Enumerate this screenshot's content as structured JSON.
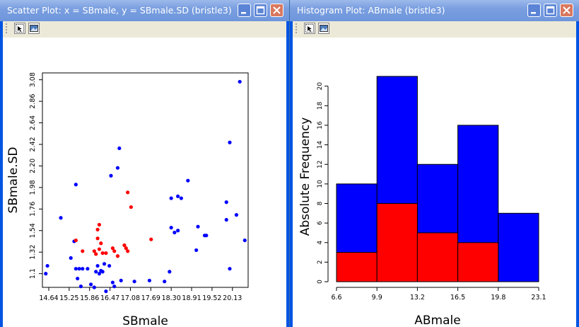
{
  "left_window": {
    "title": "Scatter Plot: x = SBmale, y = SBmale.SD (bristle3)",
    "tools": {
      "select_icon": "select-icon",
      "picture_icon": "picture-icon"
    }
  },
  "right_window": {
    "title": "Histogram Plot: ABmale (bristle3)",
    "tools": {
      "select_icon": "select-icon",
      "picture_icon": "picture-icon"
    }
  },
  "colors": {
    "blue": "#0000ff",
    "red": "#ff0000",
    "titlebar": "#7a9fe0",
    "frame": "#0054e3"
  },
  "chart_data": [
    {
      "type": "scatter",
      "xlabel": "SBmale",
      "ylabel": "SBmale.SD",
      "xticks": [
        "14.64",
        "15.25",
        "15.86",
        "16.47",
        "17.08",
        "17.69",
        "18.30",
        "18.91",
        "19.52",
        "20.13"
      ],
      "yticks": [
        "1.1",
        "1.32",
        "1.54",
        "1.76",
        "1.98",
        "2.20",
        "2.42",
        "2.64",
        "2.86",
        "3.08"
      ],
      "xlim": [
        14.45,
        20.6
      ],
      "ylim": [
        0.96,
        3.15
      ],
      "series": [
        {
          "color": "#0000ff",
          "points": [
            [
              14.55,
              1.1
            ],
            [
              14.6,
              1.18
            ],
            [
              15.0,
              1.67
            ],
            [
              15.3,
              1.26
            ],
            [
              15.4,
              1.43
            ],
            [
              15.45,
              2.01
            ],
            [
              15.45,
              1.15
            ],
            [
              15.5,
              1.05
            ],
            [
              15.55,
              1.15
            ],
            [
              15.6,
              0.97
            ],
            [
              15.65,
              1.15
            ],
            [
              15.8,
              1.15
            ],
            [
              15.9,
              0.99
            ],
            [
              16.0,
              0.96
            ],
            [
              16.05,
              1.12
            ],
            [
              16.1,
              1.18
            ],
            [
              16.15,
              1.1
            ],
            [
              16.2,
              1.13
            ],
            [
              16.25,
              1.12
            ],
            [
              16.3,
              1.2
            ],
            [
              16.35,
              0.92
            ],
            [
              16.45,
              1.18
            ],
            [
              16.5,
              2.1
            ],
            [
              16.55,
              1.01
            ],
            [
              16.6,
              0.97
            ],
            [
              16.7,
              2.18
            ],
            [
              16.75,
              2.38
            ],
            [
              16.8,
              1.03
            ],
            [
              17.2,
              1.02
            ],
            [
              17.65,
              1.03
            ],
            [
              18.1,
              1.02
            ],
            [
              18.25,
              1.12
            ],
            [
              18.3,
              1.57
            ],
            [
              18.3,
              1.87
            ],
            [
              18.4,
              1.52
            ],
            [
              18.5,
              1.54
            ],
            [
              18.5,
              1.89
            ],
            [
              18.6,
              1.87
            ],
            [
              18.8,
              2.05
            ],
            [
              19.05,
              1.34
            ],
            [
              19.1,
              1.58
            ],
            [
              19.3,
              1.49
            ],
            [
              19.35,
              1.49
            ],
            [
              19.95,
              1.65
            ],
            [
              19.95,
              1.83
            ],
            [
              20.05,
              1.15
            ],
            [
              20.05,
              2.44
            ],
            [
              20.25,
              1.7
            ],
            [
              20.35,
              3.06
            ],
            [
              20.5,
              1.44
            ]
          ]
        },
        {
          "color": "#ff0000",
          "points": [
            [
              15.45,
              1.44
            ],
            [
              15.65,
              1.33
            ],
            [
              16.0,
              1.33
            ],
            [
              16.05,
              1.3
            ],
            [
              16.1,
              1.46
            ],
            [
              16.1,
              1.55
            ],
            [
              16.15,
              1.35
            ],
            [
              16.15,
              1.6
            ],
            [
              16.2,
              1.41
            ],
            [
              16.25,
              1.31
            ],
            [
              16.35,
              1.31
            ],
            [
              16.55,
              1.36
            ],
            [
              16.6,
              1.33
            ],
            [
              16.7,
              1.28
            ],
            [
              16.9,
              1.39
            ],
            [
              16.95,
              1.36
            ],
            [
              17.0,
              1.33
            ],
            [
              17.0,
              1.93
            ],
            [
              17.1,
              1.78
            ],
            [
              17.7,
              1.45
            ]
          ]
        }
      ]
    },
    {
      "type": "bar",
      "xlabel": "ABmale",
      "ylabel": "Absolute Frequency",
      "bin_edges": [
        6.6,
        9.9,
        13.2,
        16.5,
        19.8,
        23.1
      ],
      "xticks": [
        "6.6",
        "9.9",
        "13.2",
        "16.5",
        "19.8",
        "23.1"
      ],
      "yticks": [
        "0",
        "2",
        "4",
        "6",
        "8",
        "10",
        "12",
        "14",
        "16",
        "18",
        "20"
      ],
      "ylim": [
        0,
        21.5
      ],
      "series": [
        {
          "color": "#0000ff",
          "values": [
            10,
            21,
            12,
            16,
            7
          ]
        },
        {
          "color": "#ff0000",
          "values": [
            3,
            8,
            5,
            4,
            0
          ]
        }
      ]
    }
  ]
}
